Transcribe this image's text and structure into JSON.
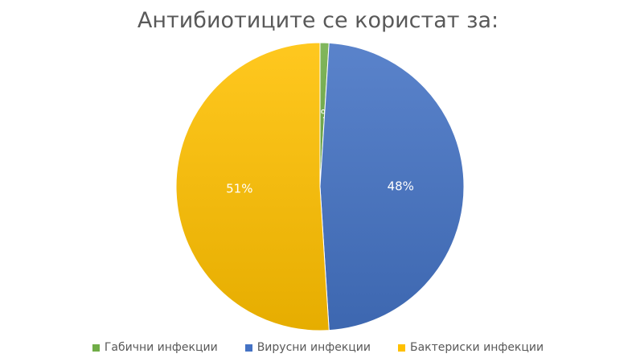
{
  "chart_data": {
    "type": "pie",
    "title": "Антибиотиците се користат за:",
    "categories": [
      "Габични инфекции",
      "Вирусни инфекции",
      "Бактериски инфекции"
    ],
    "values": [
      1,
      48,
      51
    ],
    "data_labels": [
      "1%",
      "48%",
      "51%"
    ],
    "colors": [
      "#70AD47",
      "#4472C4",
      "#FFC000"
    ],
    "legend_position": "bottom",
    "start_angle": "12 o'clock",
    "direction": "clockwise"
  }
}
